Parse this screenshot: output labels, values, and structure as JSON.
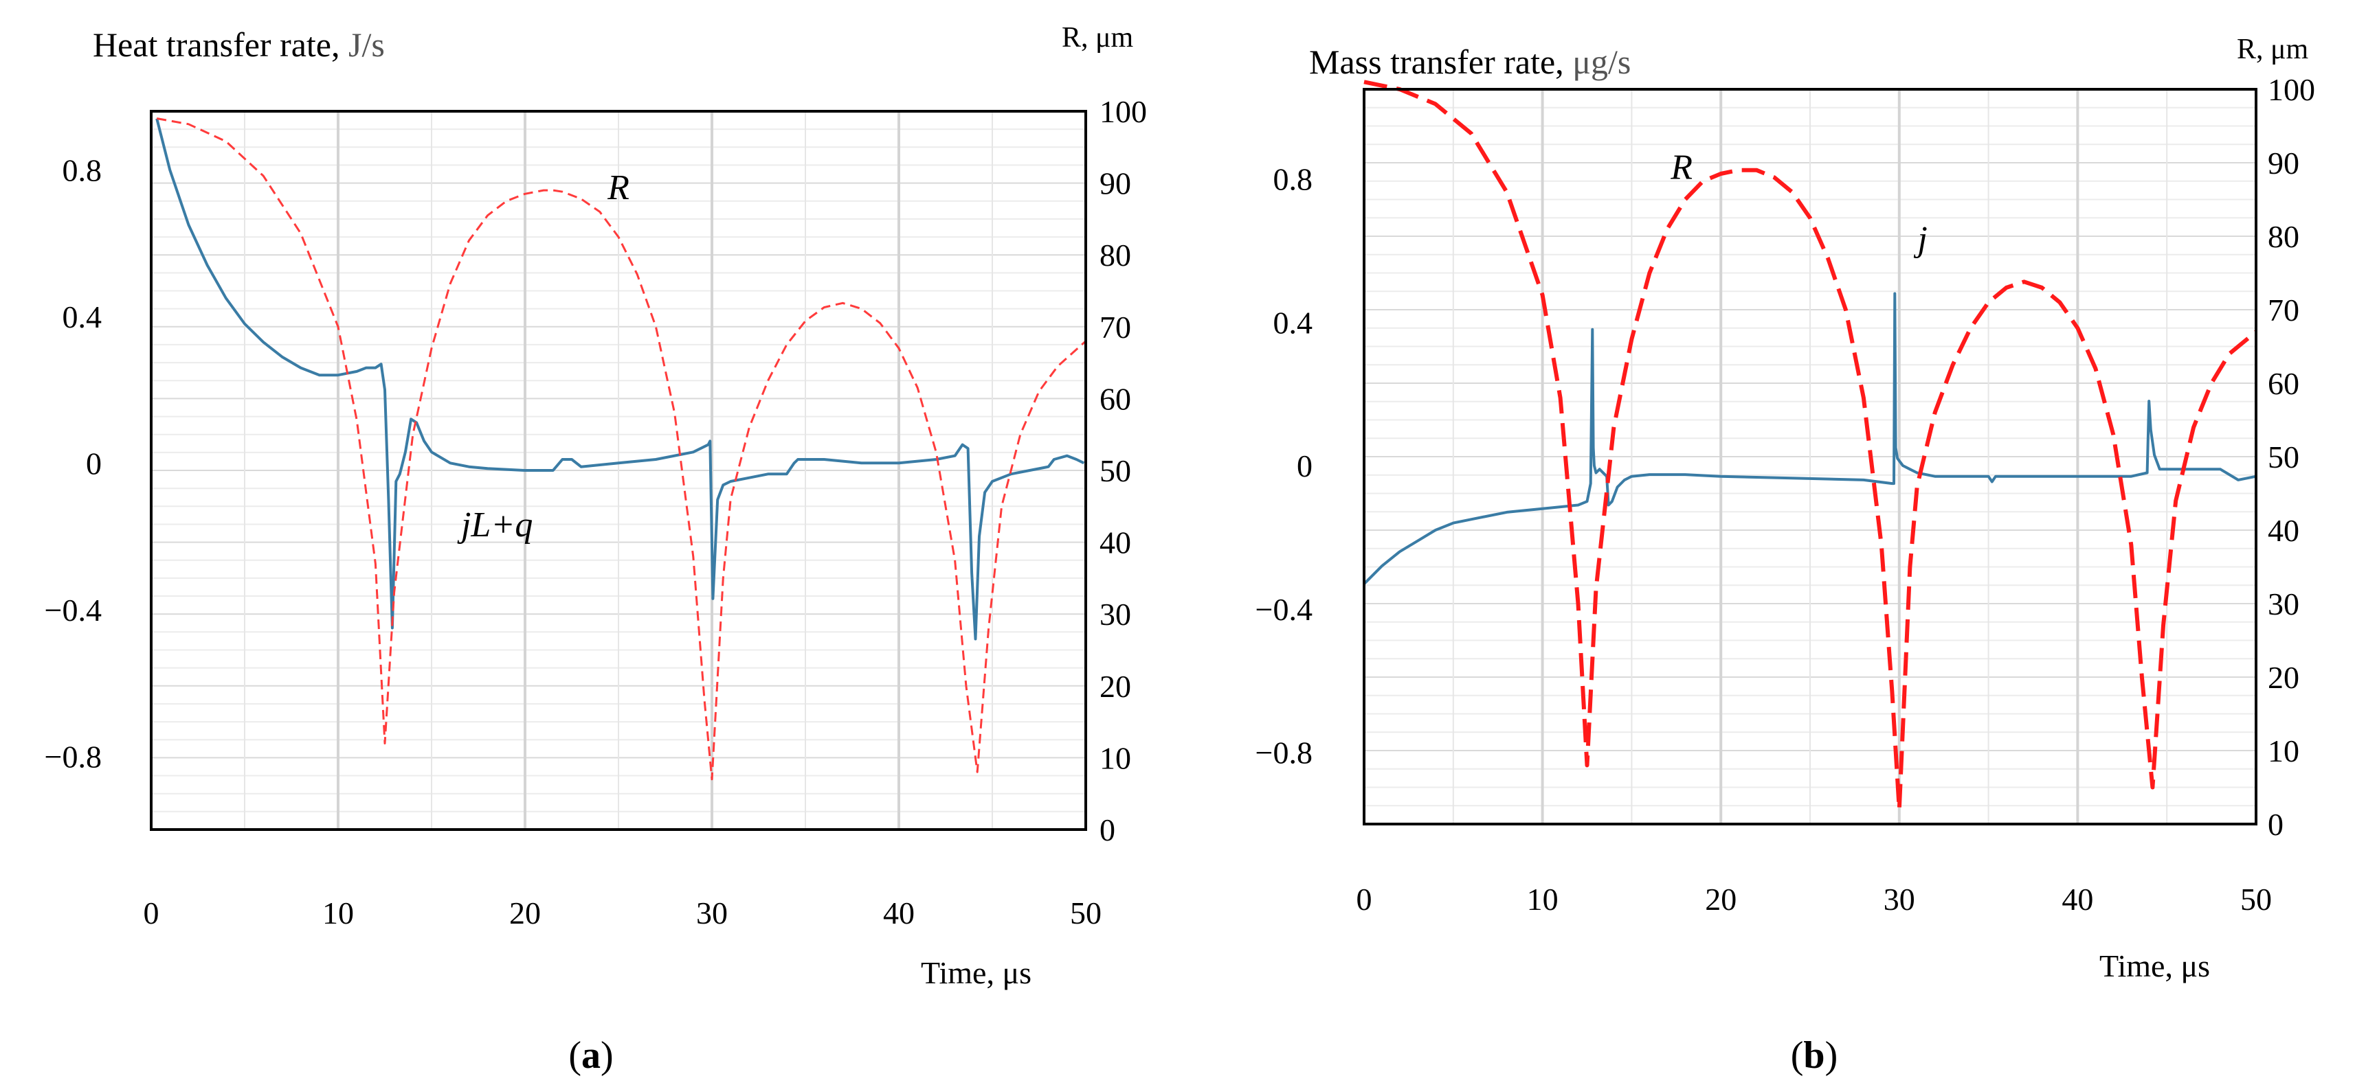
{
  "chart_data": [
    {
      "type": "line",
      "panel_label": "a",
      "title": "Heat transfer rate,",
      "title_unit": "J/s",
      "right_axis_label": "R, μm",
      "xlabel": "Time, μs",
      "xlim": [
        0,
        50
      ],
      "xticks": [
        "0",
        "10",
        "20",
        "30",
        "40",
        "50"
      ],
      "ylim": [
        -1.0,
        0.96
      ],
      "yticks": [
        {
          "value": 0.8,
          "label": "0.8"
        },
        {
          "value": 0.4,
          "label": "0.4"
        },
        {
          "value": 0,
          "label": "0"
        },
        {
          "value": -0.4,
          "label": "−0.4"
        },
        {
          "value": -0.8,
          "label": "−0.8"
        }
      ],
      "y2lim": [
        0,
        100
      ],
      "y2ticks": [
        "0",
        "10",
        "20",
        "30",
        "40",
        "50",
        "60",
        "70",
        "80",
        "90",
        "100"
      ],
      "series": [
        {
          "name": "jL+q",
          "axis": "left",
          "color": "#3a7ca5",
          "style": "solid",
          "x": [
            0.3,
            1,
            2,
            3,
            4,
            5,
            6,
            7,
            8,
            9,
            10,
            11,
            11.5,
            12,
            12.3,
            12.5,
            12.7,
            12.9,
            13.1,
            13.3,
            13.6,
            13.9,
            14.2,
            14.6,
            15,
            16,
            17,
            18,
            20,
            21.5,
            22,
            22.5,
            23,
            25,
            27,
            29,
            29.8,
            29.9,
            30.05,
            30.3,
            30.6,
            31,
            32,
            33,
            34,
            34.4,
            34.6,
            36,
            38,
            40,
            42,
            43,
            43.4,
            43.7,
            43.9,
            44.1,
            44.3,
            44.6,
            45,
            46,
            47,
            48,
            48.3,
            49,
            49.5,
            49.9
          ],
          "y": [
            0.94,
            0.8,
            0.65,
            0.54,
            0.45,
            0.38,
            0.33,
            0.29,
            0.26,
            0.24,
            0.24,
            0.25,
            0.26,
            0.26,
            0.27,
            0.2,
            -0.1,
            -0.45,
            -0.05,
            -0.03,
            0.03,
            0.12,
            0.11,
            0.06,
            0.03,
            0.0,
            -0.01,
            -0.015,
            -0.02,
            -0.02,
            0.01,
            0.01,
            -0.01,
            0.0,
            0.01,
            0.03,
            0.05,
            0.06,
            -0.37,
            -0.1,
            -0.06,
            -0.05,
            -0.04,
            -0.03,
            -0.03,
            0.0,
            0.01,
            0.01,
            0.0,
            0.0,
            0.01,
            0.02,
            0.05,
            0.04,
            -0.3,
            -0.48,
            -0.2,
            -0.08,
            -0.05,
            -0.03,
            -0.02,
            -0.01,
            0.01,
            0.02,
            0.01,
            0.0
          ]
        },
        {
          "name": "R",
          "axis": "right",
          "color": "#ff3b3b",
          "style": "dashed",
          "x": [
            0.3,
            2,
            4,
            6,
            8,
            10,
            11,
            12,
            12.5,
            13,
            14,
            15,
            16,
            17,
            18,
            19,
            20,
            21,
            21.5,
            22,
            23,
            24,
            25,
            26,
            27,
            28,
            29,
            29.6,
            30,
            30.6,
            31,
            32,
            33,
            34,
            35,
            36,
            37,
            38,
            39,
            40,
            41,
            42,
            43,
            43.6,
            44.2,
            44.8,
            45.5,
            46.5,
            47.5,
            48.5,
            50
          ],
          "y": [
            99,
            98.2,
            95.8,
            91,
            83,
            70,
            57,
            37,
            12,
            33,
            55,
            67,
            76,
            82,
            85.5,
            87.5,
            88.5,
            89,
            89,
            88.8,
            87.8,
            86,
            82.5,
            77.3,
            70,
            58,
            38,
            18,
            7,
            35,
            46,
            56,
            62.5,
            67.5,
            70.8,
            72.7,
            73.3,
            72.5,
            70.5,
            67,
            61.5,
            52.5,
            37.5,
            20,
            8,
            28,
            45,
            55,
            61,
            64.5,
            68
          ]
        }
      ],
      "annotations": [
        {
          "text": "R",
          "x": 25,
          "y": 0.72
        },
        {
          "text": "jL+q",
          "x": 18.5,
          "y": -0.2
        }
      ]
    },
    {
      "type": "line",
      "panel_label": "b",
      "title": "Mass transfer rate,",
      "title_unit": "μg/s",
      "right_axis_label": "R, μm",
      "xlabel": "Time, μs",
      "xlim": [
        0,
        50
      ],
      "xticks": [
        "0",
        "10",
        "20",
        "30",
        "40",
        "50"
      ],
      "ylim": [
        -1.0,
        1.05
      ],
      "yticks": [
        {
          "value": 0.8,
          "label": "0.8"
        },
        {
          "value": 0.4,
          "label": "0.4"
        },
        {
          "value": 0,
          "label": "0"
        },
        {
          "value": -0.4,
          "label": "−0.4"
        },
        {
          "value": -0.8,
          "label": "−0.8"
        }
      ],
      "y2lim": [
        0,
        100
      ],
      "y2ticks": [
        "0",
        "10",
        "20",
        "30",
        "40",
        "50",
        "60",
        "70",
        "80",
        "90",
        "100"
      ],
      "series": [
        {
          "name": "j",
          "axis": "left",
          "color": "#3a7ca5",
          "style": "solid",
          "x": [
            0,
            1,
            2,
            3,
            4,
            5,
            6,
            8,
            10,
            12,
            12.5,
            12.7,
            12.8,
            12.85,
            12.9,
            13.0,
            13.2,
            13.6,
            13.7,
            13.9,
            14.2,
            14.6,
            15,
            16,
            18,
            20,
            24,
            28,
            29.6,
            29.7,
            29.75,
            29.8,
            29.9,
            30.2,
            30.6,
            31,
            32,
            33,
            34,
            35,
            35.2,
            35.4,
            36,
            40,
            43,
            43.9,
            44.0,
            44.1,
            44.3,
            44.6,
            45,
            46,
            47,
            48,
            49,
            50
          ],
          "y": [
            -0.33,
            -0.28,
            -0.24,
            -0.21,
            -0.18,
            -0.16,
            -0.15,
            -0.13,
            -0.12,
            -0.11,
            -0.1,
            -0.05,
            0.38,
            0.05,
            0.0,
            -0.02,
            -0.01,
            -0.03,
            -0.11,
            -0.1,
            -0.06,
            -0.04,
            -0.03,
            -0.025,
            -0.025,
            -0.03,
            -0.035,
            -0.04,
            -0.05,
            -0.05,
            0.48,
            0.05,
            0.02,
            0.0,
            -0.01,
            -0.02,
            -0.03,
            -0.03,
            -0.03,
            -0.03,
            -0.045,
            -0.03,
            -0.03,
            -0.03,
            -0.03,
            -0.02,
            0.18,
            0.1,
            0.03,
            -0.01,
            -0.01,
            -0.01,
            -0.01,
            -0.01,
            -0.04,
            -0.03
          ]
        },
        {
          "name": "R",
          "axis": "right",
          "color": "#ff1a1a",
          "style": "dashed",
          "x": [
            0,
            2,
            4,
            6,
            8,
            10,
            11,
            12,
            12.5,
            13,
            14,
            15,
            16,
            17,
            18,
            19,
            20,
            21,
            22,
            23,
            24,
            25,
            26,
            27,
            28,
            29,
            29.6,
            30,
            30.6,
            31,
            32,
            33,
            34,
            35,
            36,
            37,
            38,
            39,
            40,
            41,
            42,
            43,
            43.6,
            44.2,
            44.8,
            45.5,
            46.5,
            47.5,
            48.5,
            50
          ],
          "y": [
            101,
            100,
            98,
            94,
            86,
            72,
            58,
            30,
            8,
            32,
            54,
            66,
            75,
            81,
            85,
            87.5,
            88.5,
            89,
            89,
            88,
            86,
            82.5,
            77,
            70,
            58,
            38,
            18,
            2,
            35,
            46,
            56,
            62.5,
            67.5,
            71,
            73,
            73.8,
            73,
            71,
            67.5,
            62,
            53,
            38,
            20,
            5,
            27,
            44,
            54,
            60,
            64,
            67
          ]
        }
      ],
      "annotations": [
        {
          "text": "R",
          "x": 17.8,
          "y": 0.8
        },
        {
          "text": "j",
          "x": 31.3,
          "y": 0.6
        }
      ]
    }
  ]
}
